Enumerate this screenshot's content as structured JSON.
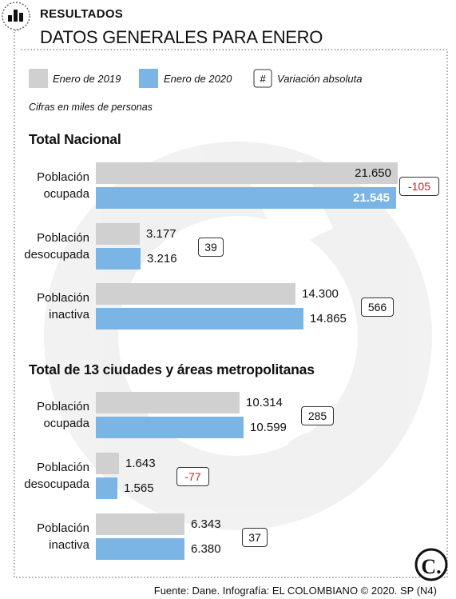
{
  "header": {
    "kicker": "RESULTADOS",
    "title": "DATOS GENERALES PARA ENERO"
  },
  "legend": {
    "items": [
      {
        "label": "Enero de 2019",
        "color": "#d0d0d0"
      },
      {
        "label": "Enero de 2020",
        "color": "#7ab5e6"
      },
      {
        "label": "Variación absoluta",
        "symbol": "#"
      }
    ]
  },
  "note": "Cifras en miles de personas",
  "source": "Fuente: Dane. Infografía: EL COLOMBIANO © 2020. SP (N4)",
  "colors": {
    "y2019": "#d0d0d0",
    "y2020": "#7ab5e6",
    "negative": "#c0262b"
  },
  "chart_data": [
    {
      "type": "bar",
      "title": "Total Nacional",
      "categories": [
        "Población ocupada",
        "Población desocupada",
        "Población inactiva"
      ],
      "series": [
        {
          "name": "Enero de 2019",
          "values": [
            21650,
            3177,
            14300
          ],
          "labels": [
            "21.650",
            "3.177",
            "14.300"
          ]
        },
        {
          "name": "Enero de 2020",
          "values": [
            21545,
            3216,
            14865
          ],
          "labels": [
            "21.545",
            "3.216",
            "14.865"
          ]
        }
      ],
      "variation": [
        "-105",
        "39",
        "566"
      ]
    },
    {
      "type": "bar",
      "title": "Total de 13 ciudades y áreas metropolitanas",
      "categories": [
        "Población ocupada",
        "Población desocupada",
        "Población inactiva"
      ],
      "series": [
        {
          "name": "Enero de 2019",
          "values": [
            10314,
            1643,
            6343
          ],
          "labels": [
            "10.314",
            "1.643",
            "6.343"
          ]
        },
        {
          "name": "Enero de 2020",
          "values": [
            10599,
            1565,
            6380
          ],
          "labels": [
            "10.599",
            "1.565",
            "6.380"
          ]
        }
      ],
      "variation": [
        "285",
        "-77",
        "37"
      ]
    }
  ]
}
